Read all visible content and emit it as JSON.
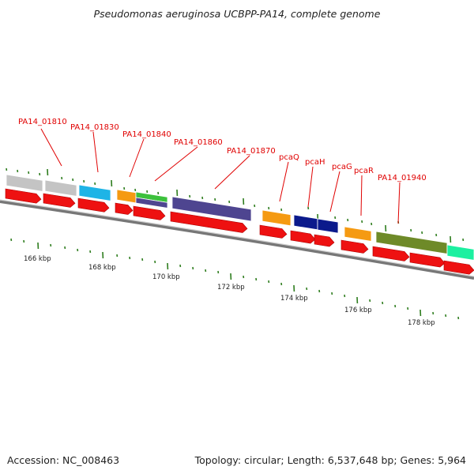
{
  "header": {
    "title": "Pseudomonas aeruginosa UCBPP-PA14, complete genome"
  },
  "footer": {
    "accession": "Accession: NC_008463",
    "summary": "Topology: circular; Length: 6,537,648 bp; Genes: 5,964"
  },
  "colors": {
    "cds": "#ee1111",
    "backbone": "#999999",
    "tick": "#2e7d1e",
    "label": "#e00000",
    "gray": "#c4c4c4",
    "sky": "#1eb4e6",
    "orange": "#f59a12",
    "green": "#3cc13c",
    "purple": "#4e4590",
    "navy": "#0b1a8c",
    "olive": "#6e8a28",
    "teal": "#1cf0a0"
  },
  "gene_labels": [
    {
      "text": "PA14_01810"
    },
    {
      "text": "PA14_01830"
    },
    {
      "text": "PA14_01840"
    },
    {
      "text": "PA14_01860"
    },
    {
      "text": "PA14_01870"
    },
    {
      "text": "pcaQ"
    },
    {
      "text": "pcaH"
    },
    {
      "text": "pcaG"
    },
    {
      "text": "pcaR"
    },
    {
      "text": "PA14_01940"
    }
  ],
  "scale_labels": [
    {
      "text": "166 kbp"
    },
    {
      "text": "168 kbp"
    },
    {
      "text": "170 kbp"
    },
    {
      "text": "172 kbp"
    },
    {
      "text": "174 kbp"
    },
    {
      "text": "176 kbp"
    },
    {
      "text": "178 kbp"
    }
  ]
}
